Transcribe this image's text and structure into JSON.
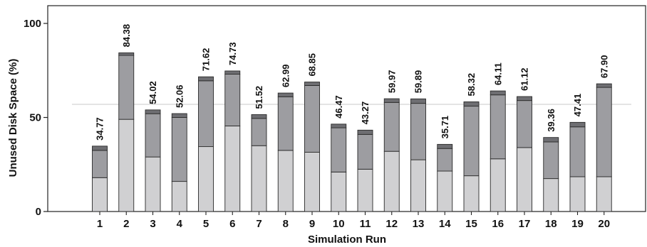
{
  "chart_data": {
    "type": "bar",
    "stacked": true,
    "title": "",
    "xlabel": "Simulation Run",
    "ylabel": "Unused Disk Space (%)",
    "ylim": [
      0,
      100
    ],
    "yticks": [
      0,
      50,
      100
    ],
    "grid": false,
    "reference_line": 57,
    "categories": [
      "1",
      "2",
      "3",
      "4",
      "5",
      "6",
      "7",
      "8",
      "9",
      "10",
      "11",
      "12",
      "13",
      "14",
      "15",
      "16",
      "17",
      "18",
      "19",
      "20"
    ],
    "colors": {
      "light": "#d0d0d2",
      "mid": "#9d9da1",
      "dark": "#6e6e72",
      "edge": "#2a2a2a",
      "refline": "#c9c9c9"
    },
    "series": [
      {
        "color": "light",
        "values": [
          18.0,
          49.0,
          29.0,
          16.0,
          34.5,
          45.5,
          35.0,
          32.5,
          31.5,
          21.0,
          22.5,
          32.0,
          27.5,
          21.5,
          19.0,
          28.0,
          34.0,
          17.5,
          18.5,
          18.5
        ]
      },
      {
        "color": "mid",
        "values": [
          14.5,
          34.0,
          23.0,
          34.0,
          35.0,
          27.5,
          14.5,
          28.5,
          35.5,
          23.5,
          18.5,
          26.0,
          30.0,
          12.0,
          37.0,
          34.0,
          25.0,
          19.5,
          26.5,
          47.5
        ]
      },
      {
        "color": "dark",
        "values": [
          2.27,
          1.38,
          2.02,
          2.06,
          2.12,
          1.73,
          2.02,
          1.99,
          1.85,
          1.97,
          2.27,
          1.97,
          2.39,
          2.21,
          2.32,
          2.11,
          2.12,
          2.36,
          2.41,
          1.9
        ]
      }
    ],
    "totals": [
      "34.77",
      "84.38",
      "54.02",
      "52.06",
      "71.62",
      "74.73",
      "51.52",
      "62.99",
      "68.85",
      "46.47",
      "43.27",
      "59.97",
      "59.89",
      "35.71",
      "58.32",
      "64.11",
      "61.12",
      "39.36",
      "47.41",
      "67.90"
    ]
  }
}
